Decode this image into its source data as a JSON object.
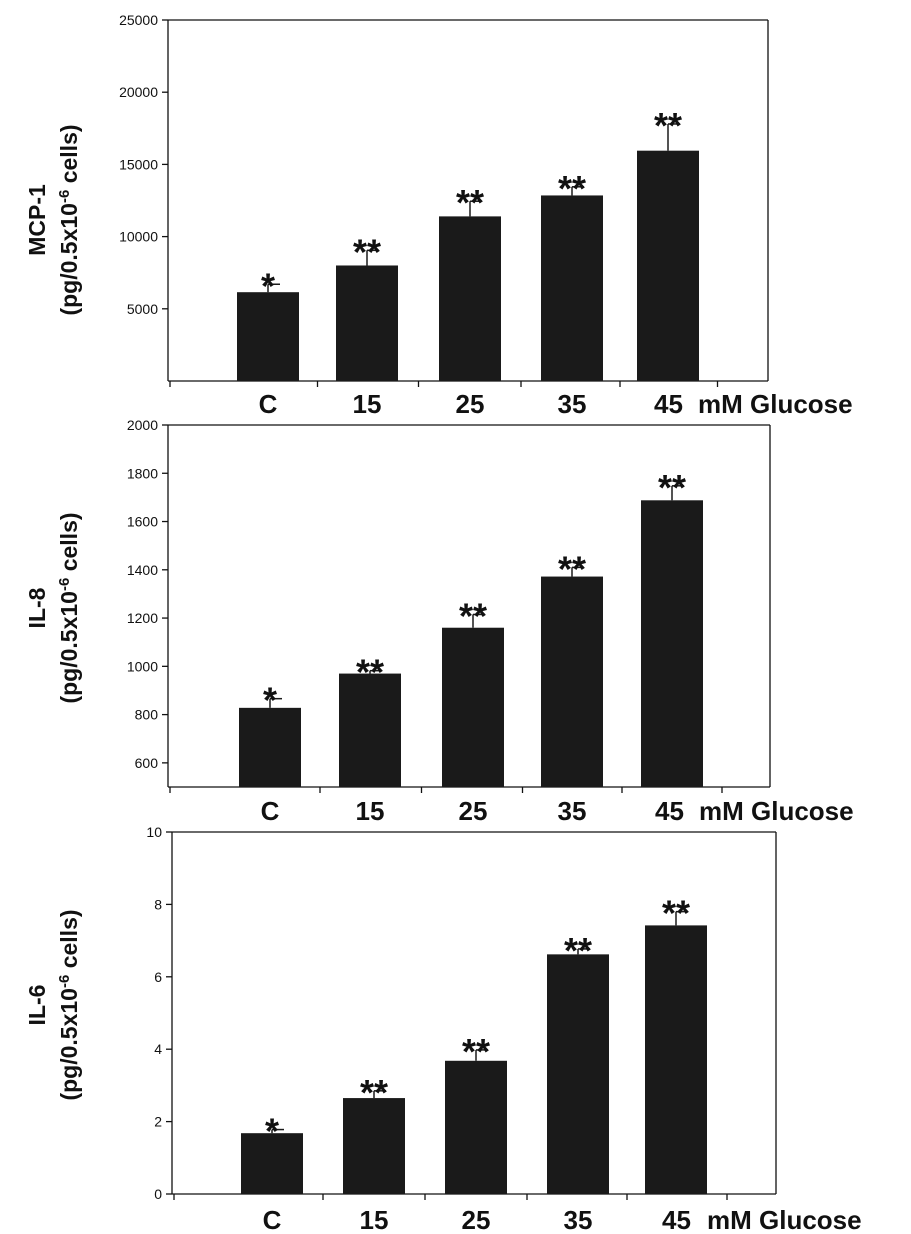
{
  "chart_data": [
    {
      "type": "bar",
      "categories": [
        "C",
        "15",
        "25",
        "35",
        "45"
      ],
      "x_suffix": "mM Glucose",
      "values": [
        6150,
        8000,
        11400,
        12850,
        15950
      ],
      "errors": [
        550,
        1050,
        1050,
        600,
        1850
      ],
      "significance": [
        "*",
        "**",
        "**",
        "**",
        "**"
      ],
      "ylabel_line1": "MCP-1",
      "ylabel_line2_pre": "(pg/0.5x10",
      "ylabel_line2_sup": "-6",
      "ylabel_line2_post": " cells)",
      "ylim": [
        0,
        25000
      ],
      "yticks": [
        5000,
        10000,
        15000,
        20000,
        25000
      ]
    },
    {
      "type": "bar",
      "categories": [
        "C",
        "15",
        "25",
        "35",
        "45"
      ],
      "x_suffix": "mM Glucose",
      "values": [
        828,
        970,
        1160,
        1372,
        1688
      ],
      "errors": [
        38,
        12,
        55,
        38,
        60
      ],
      "significance": [
        "*",
        "**",
        "**",
        "**",
        "**"
      ],
      "ylabel_line1": "IL-8",
      "ylabel_line2_pre": "(pg/0.5x10",
      "ylabel_line2_sup": "-6",
      "ylabel_line2_post": " cells)",
      "ylim": [
        500,
        2000
      ],
      "yticks": [
        600,
        800,
        1000,
        1200,
        1400,
        1600,
        1800,
        2000
      ]
    },
    {
      "type": "bar",
      "categories": [
        "C",
        "15",
        "25",
        "35",
        "45"
      ],
      "x_suffix": "mM Glucose",
      "values": [
        1.68,
        2.65,
        3.68,
        6.62,
        7.42
      ],
      "errors": [
        0.1,
        0.2,
        0.3,
        0.15,
        0.38
      ],
      "significance": [
        "*",
        "**",
        "**",
        "**",
        "**"
      ],
      "ylabel_line1": "IL-6",
      "ylabel_line2_pre": "(pg/0.5x10",
      "ylabel_line2_sup": "-6",
      "ylabel_line2_post": " cells)",
      "ylim": [
        0,
        10
      ],
      "yticks": [
        0,
        2,
        4,
        6,
        8,
        10
      ]
    }
  ]
}
